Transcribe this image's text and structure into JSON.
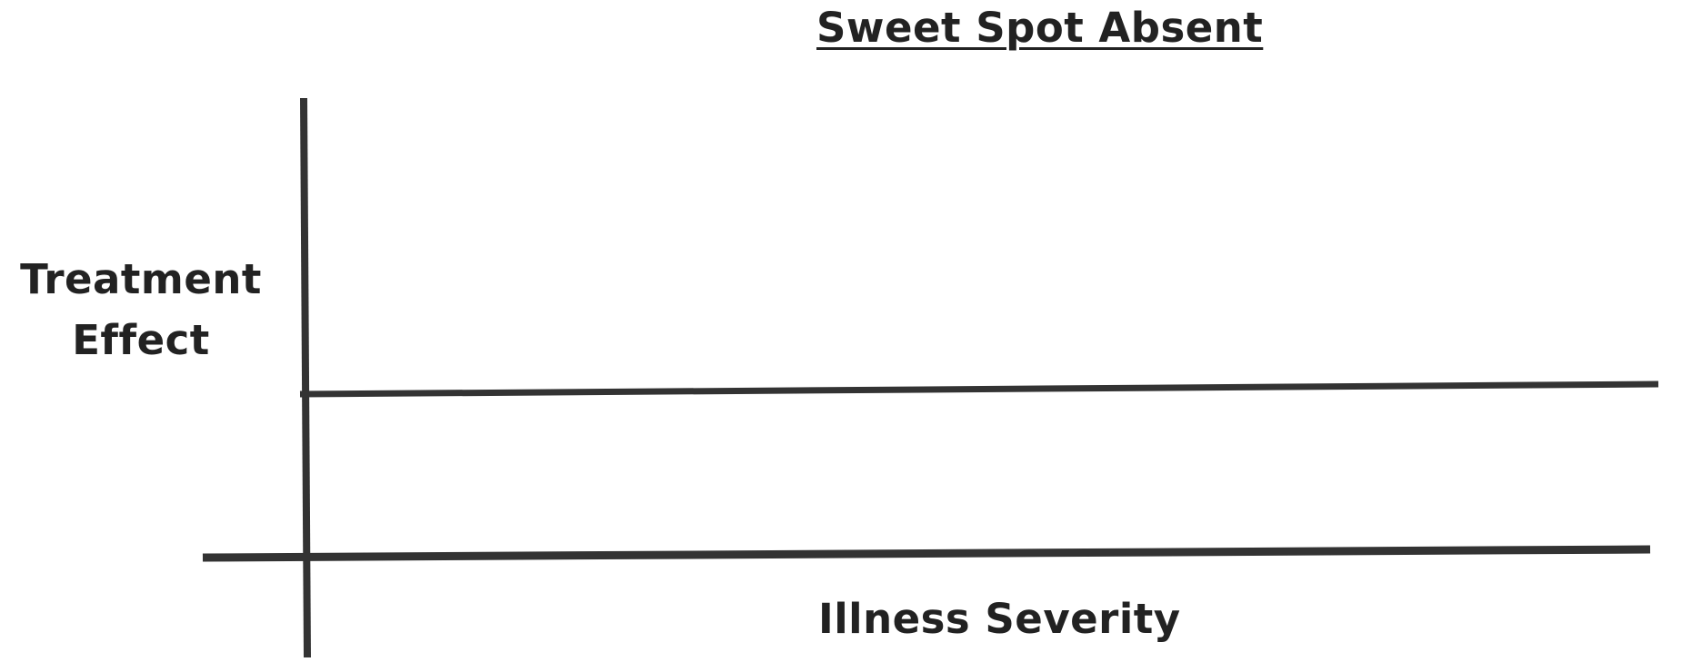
{
  "title": "Sweet Spot Absent",
  "y_axis_label": [
    "Treatment",
    "Effect"
  ],
  "x_axis_label": "Illness Severity",
  "colors": {
    "line": "#333333",
    "text": "#222222",
    "background": "#ffffff"
  }
}
